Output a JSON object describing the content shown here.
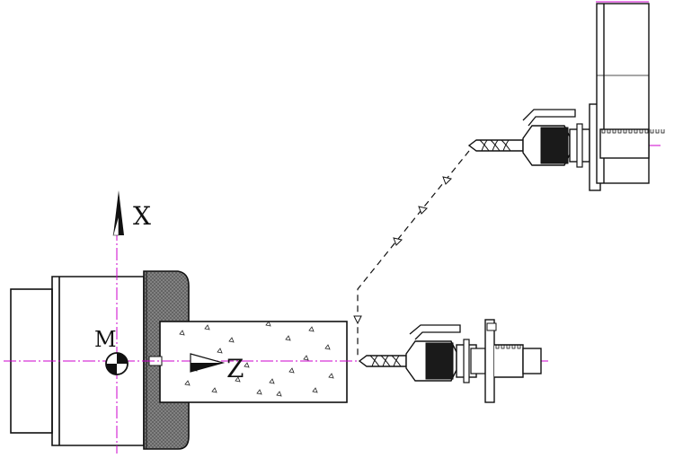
{
  "labels": {
    "x_axis": "X",
    "z_axis": "Z",
    "machine_origin": "M"
  },
  "colors": {
    "centerline": "#cc00cc",
    "outline": "#111111",
    "chuck_knurl": "#7a7a7a",
    "background": "#ffffff"
  },
  "icons": {
    "machine_origin": "machine-zero-symbol",
    "workpiece_origin": "workpiece-zero-arrow"
  }
}
